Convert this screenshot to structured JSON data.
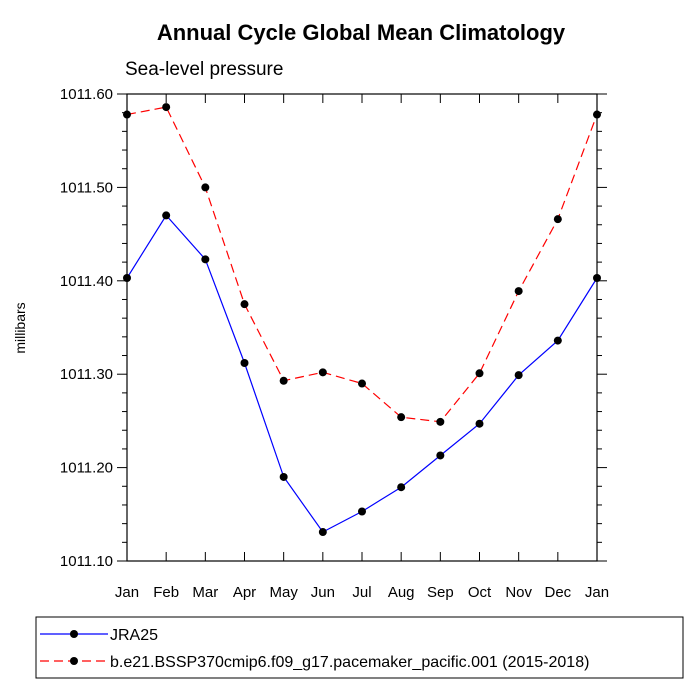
{
  "chart_data": {
    "type": "line",
    "title": "Annual Cycle Global Mean Climatology",
    "subtitle": "Sea-level pressure",
    "xlabel": "",
    "ylabel": "millibars",
    "categories": [
      "Jan",
      "Feb",
      "Mar",
      "Apr",
      "May",
      "Jun",
      "Jul",
      "Aug",
      "Sep",
      "Oct",
      "Nov",
      "Dec",
      "Jan"
    ],
    "ylim": [
      1011.1,
      1011.6
    ],
    "yticks": [
      "1011.10",
      "1011.20",
      "1011.30",
      "1011.40",
      "1011.50",
      "1011.60"
    ],
    "grid": false,
    "legend_position": "bottom",
    "series": [
      {
        "name": "JRA25",
        "color": "#0000ff",
        "line_style": "solid",
        "marker": "filled-circle",
        "values": [
          1011.403,
          1011.47,
          1011.423,
          1011.312,
          1011.19,
          1011.131,
          1011.153,
          1011.179,
          1011.213,
          1011.247,
          1011.299,
          1011.336,
          1011.403
        ]
      },
      {
        "name": "b.e21.BSSP370cmip6.f09_g17.pacemaker_pacific.001 (2015-2018)",
        "color": "#ff0000",
        "line_style": "dashed",
        "marker": "filled-circle",
        "values": [
          1011.578,
          1011.586,
          1011.5,
          1011.375,
          1011.293,
          1011.302,
          1011.29,
          1011.254,
          1011.249,
          1011.301,
          1011.389,
          1011.466,
          1011.578
        ]
      }
    ]
  }
}
